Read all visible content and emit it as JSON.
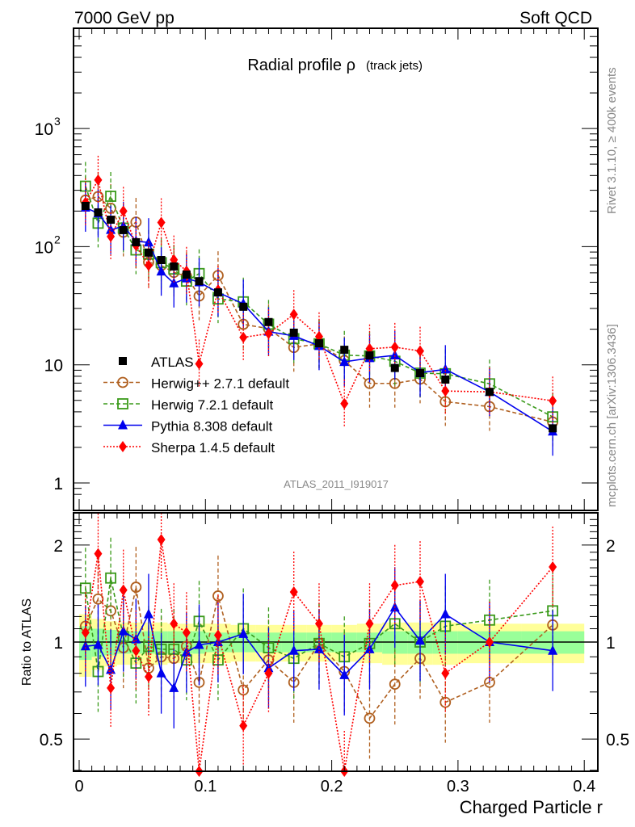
{
  "header": {
    "left": "7000 GeV pp",
    "right": "Soft QCD"
  },
  "side_labels": {
    "top": "Rivet 3.1.10, ≥ 400k events",
    "bottom": "mcplots.cern.ch [arXiv:1306.3436]"
  },
  "analysis_id": "ATLAS_2011_I919017",
  "chart_data": [
    {
      "type": "scatter",
      "panel": "main",
      "title": "Radial profile ρ",
      "title_suffix": "(track jets)",
      "xlabel": "Charged Particle r",
      "ylabel": "",
      "yscale": "log",
      "xlim": [
        -0.0075,
        0.4075
      ],
      "ylim": [
        0.7,
        5000
      ],
      "x_ticks": [
        "0",
        "0.1",
        "0.2",
        "0.3",
        "0.4"
      ],
      "x_tick_values": [
        0,
        0.1,
        0.2,
        0.3,
        0.4
      ],
      "y_ticks": [
        "1",
        "10",
        "10^3",
        "10^2"
      ],
      "y_tick_values": [
        1,
        10,
        1000,
        100
      ],
      "legend_position": "bottom-left",
      "x": [
        0.005,
        0.015,
        0.025,
        0.035,
        0.045,
        0.055,
        0.065,
        0.075,
        0.085,
        0.095,
        0.11,
        0.13,
        0.15,
        0.17,
        0.19,
        0.21,
        0.23,
        0.25,
        0.27,
        0.29,
        0.325,
        0.375
      ],
      "series": [
        {
          "name": "ATLAS",
          "style": "data",
          "color": "#000000",
          "values": [
            221,
            195,
            169,
            138,
            109,
            89,
            77,
            68,
            58,
            51,
            41,
            31,
            23,
            18.7,
            15.2,
            13.4,
            12.0,
            9.4,
            8.5,
            7.5,
            5.9,
            2.9
          ]
        },
        {
          "name": "Herwig++ 2.7.1 default",
          "style": "dashed-circle",
          "color": "#b06020",
          "ratio": [
            1.12,
            1.36,
            1.25,
            0.96,
            1.48,
            0.83,
            0.9,
            0.89,
            0.97,
            0.75,
            1.39,
            0.71,
            0.88,
            0.75,
            0.99,
            0.81,
            0.58,
            0.74,
            0.89,
            0.65,
            0.75,
            1.13
          ]
        },
        {
          "name": "Herwig 7.2.1 default",
          "style": "dashed-square",
          "color": "#3a9a1a",
          "ratio": [
            1.47,
            0.81,
            1.58,
            1.04,
            0.86,
            0.97,
            0.95,
            0.95,
            0.88,
            1.16,
            0.88,
            1.1,
            0.96,
            0.89,
            0.99,
            0.9,
            0.99,
            1.14,
            1.0,
            1.12,
            1.17,
            1.25
          ]
        },
        {
          "name": "Pythia 8.308 default",
          "style": "solid-triangle",
          "color": "#0000ee",
          "ratio": [
            0.97,
            0.98,
            0.82,
            1.08,
            1.02,
            1.22,
            0.8,
            0.72,
            0.93,
            0.98,
            1.0,
            1.06,
            0.83,
            0.94,
            0.95,
            0.79,
            0.95,
            1.28,
            1.01,
            1.22,
            1.0,
            0.94
          ]
        },
        {
          "name": "Sherpa 1.4.5 default",
          "style": "dotted-diamond",
          "color": "#ff0000",
          "ratio": [
            1.07,
            1.88,
            0.72,
            1.45,
            0.94,
            0.78,
            2.08,
            1.14,
            1.07,
            0.2,
            1.05,
            0.55,
            0.8,
            1.43,
            1.14,
            0.35,
            1.14,
            1.5,
            1.54,
            0.8,
            1.0,
            1.71
          ]
        }
      ]
    },
    {
      "type": "scatter",
      "panel": "ratio",
      "ylabel": "Ratio to ATLAS",
      "xlabel": "Charged Particle r",
      "yscale": "log",
      "ylim": [
        0.4,
        2.5
      ],
      "y_ticks": [
        "0.5",
        "1",
        "2"
      ],
      "y_tick_values": [
        0.5,
        1,
        2
      ],
      "band_inner": [
        0.12,
        0.1,
        0.09,
        0.08,
        0.08,
        0.08,
        0.08,
        0.08,
        0.08,
        0.08,
        0.07,
        0.07,
        0.07,
        0.07,
        0.07,
        0.07,
        0.07,
        0.08,
        0.08,
        0.08,
        0.08,
        0.08
      ],
      "band_outer": [
        0.22,
        0.18,
        0.16,
        0.15,
        0.15,
        0.15,
        0.15,
        0.14,
        0.14,
        0.14,
        0.14,
        0.13,
        0.13,
        0.13,
        0.13,
        0.13,
        0.14,
        0.15,
        0.15,
        0.15,
        0.14,
        0.14
      ],
      "band_inner_color": "#99ff99",
      "band_outer_color": "#ffff99"
    }
  ]
}
